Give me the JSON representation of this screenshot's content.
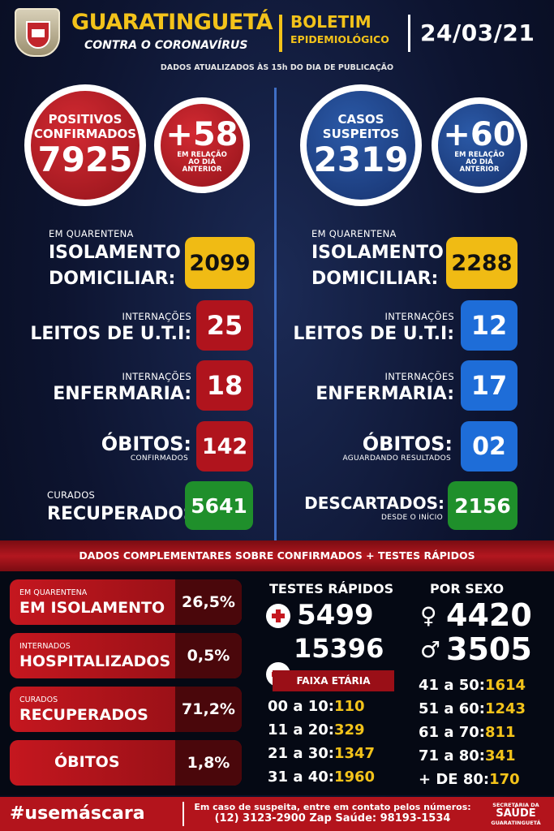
{
  "header": {
    "city": "GUARATINGUETÁ",
    "campaign": "CONTRA O CORONAVÍRUS",
    "bulletin_line1": "BOLETIM",
    "bulletin_line2": "EPIDEMIOLÓGICO",
    "date": "24/03/21",
    "updated_note": "DADOS ATUALIZADOS ÀS 15h DO DIA DE PUBLICAÇÃO"
  },
  "confirmed": {
    "label_line1": "POSITIVOS",
    "label_line2": "CONFIRMADOS",
    "value": "7925",
    "delta": "+58",
    "delta_note_1": "EM RELAÇÃO",
    "delta_note_2": "AO DIA",
    "delta_note_3": "ANTERIOR"
  },
  "suspected": {
    "label_line1": "CASOS",
    "label_line2": "SUSPEITOS",
    "value": "2319",
    "delta": "+60",
    "delta_note_1": "EM RELAÇÃO",
    "delta_note_2": "AO DIA",
    "delta_note_3": "ANTERIOR"
  },
  "left": {
    "quarantine_small": "EM QUARENTENA",
    "quarantine_big1": "ISOLAMENTO",
    "quarantine_big2": "DOMICILIAR:",
    "quarantine_value": "2099",
    "icu_small": "INTERNAÇÕES",
    "icu_big": "LEITOS DE U.T.I:",
    "icu_value": "25",
    "ward_small": "INTERNAÇÕES",
    "ward_big": "ENFERMARIA:",
    "ward_value": "18",
    "deaths_big": "ÓBITOS:",
    "deaths_small": "CONFIRMADOS",
    "deaths_value": "142",
    "cured_small": "CURADOS",
    "cured_big": "RECUPERADOS:",
    "cured_value": "5641"
  },
  "right": {
    "quarantine_small": "EM QUARENTENA",
    "quarantine_big1": "ISOLAMENTO",
    "quarantine_big2": "DOMICILIAR:",
    "quarantine_value": "2288",
    "icu_small": "INTERNAÇÕES",
    "icu_big": "LEITOS DE U.T.I:",
    "icu_value": "12",
    "ward_small": "INTERNAÇÕES",
    "ward_big": "ENFERMARIA:",
    "ward_value": "17",
    "deaths_big": "ÓBITOS:",
    "deaths_small": "AGUARDANDO RESULTADOS",
    "deaths_value": "02",
    "discarded_big": "DESCARTADOS:",
    "discarded_small": "DESDE O INÍCIO",
    "discarded_value": "2156"
  },
  "complement_banner": "DADOS COMPLEMENTARES SOBRE CONFIRMADOS + TESTES RÁPIDOS",
  "percent_cards": [
    {
      "small": "EM QUARENTENA",
      "big": "EM ISOLAMENTO",
      "pct": "26,5%"
    },
    {
      "small": "INTERNADOS",
      "big": "HOSPITALIZADOS",
      "pct": "0,5%"
    },
    {
      "small": "CURADOS",
      "big": "RECUPERADOS",
      "pct": "71,2%"
    },
    {
      "small": "",
      "big": "ÓBITOS",
      "pct": "1,8%"
    }
  ],
  "rapid_tests": {
    "title": "TESTES RÁPIDOS",
    "positive": "5499",
    "negative": "15396"
  },
  "by_sex": {
    "title": "POR SEXO",
    "female": "4420",
    "male": "3505"
  },
  "age_title": "FAIXA ETÁRIA",
  "age_left": [
    {
      "range": "00 a 10:",
      "value": "110"
    },
    {
      "range": "11 a 20:",
      "value": "329"
    },
    {
      "range": "21 a 30:",
      "value": "1347"
    },
    {
      "range": "31 a 40:",
      "value": "1960"
    }
  ],
  "age_right": [
    {
      "range": "41 a 50:",
      "value": "1614"
    },
    {
      "range": "51 a 60:",
      "value": "1243"
    },
    {
      "range": "61 a 70:",
      "value": "811"
    },
    {
      "range": "71 a 80:",
      "value": "341"
    },
    {
      "range": "+ DE 80:",
      "value": "170"
    }
  ],
  "footer": {
    "hashtag": "#usemáscara",
    "contact_line1": "Em caso de suspeita, entre em contato pelos números:",
    "contact_line2": "(12) 3123-2900 Zap Saúde: 98193-1534",
    "dept_line1": "SECRETARIA DA",
    "dept_line2": "SAÚDE",
    "dept_line3": "GUARATINGUETÁ"
  }
}
